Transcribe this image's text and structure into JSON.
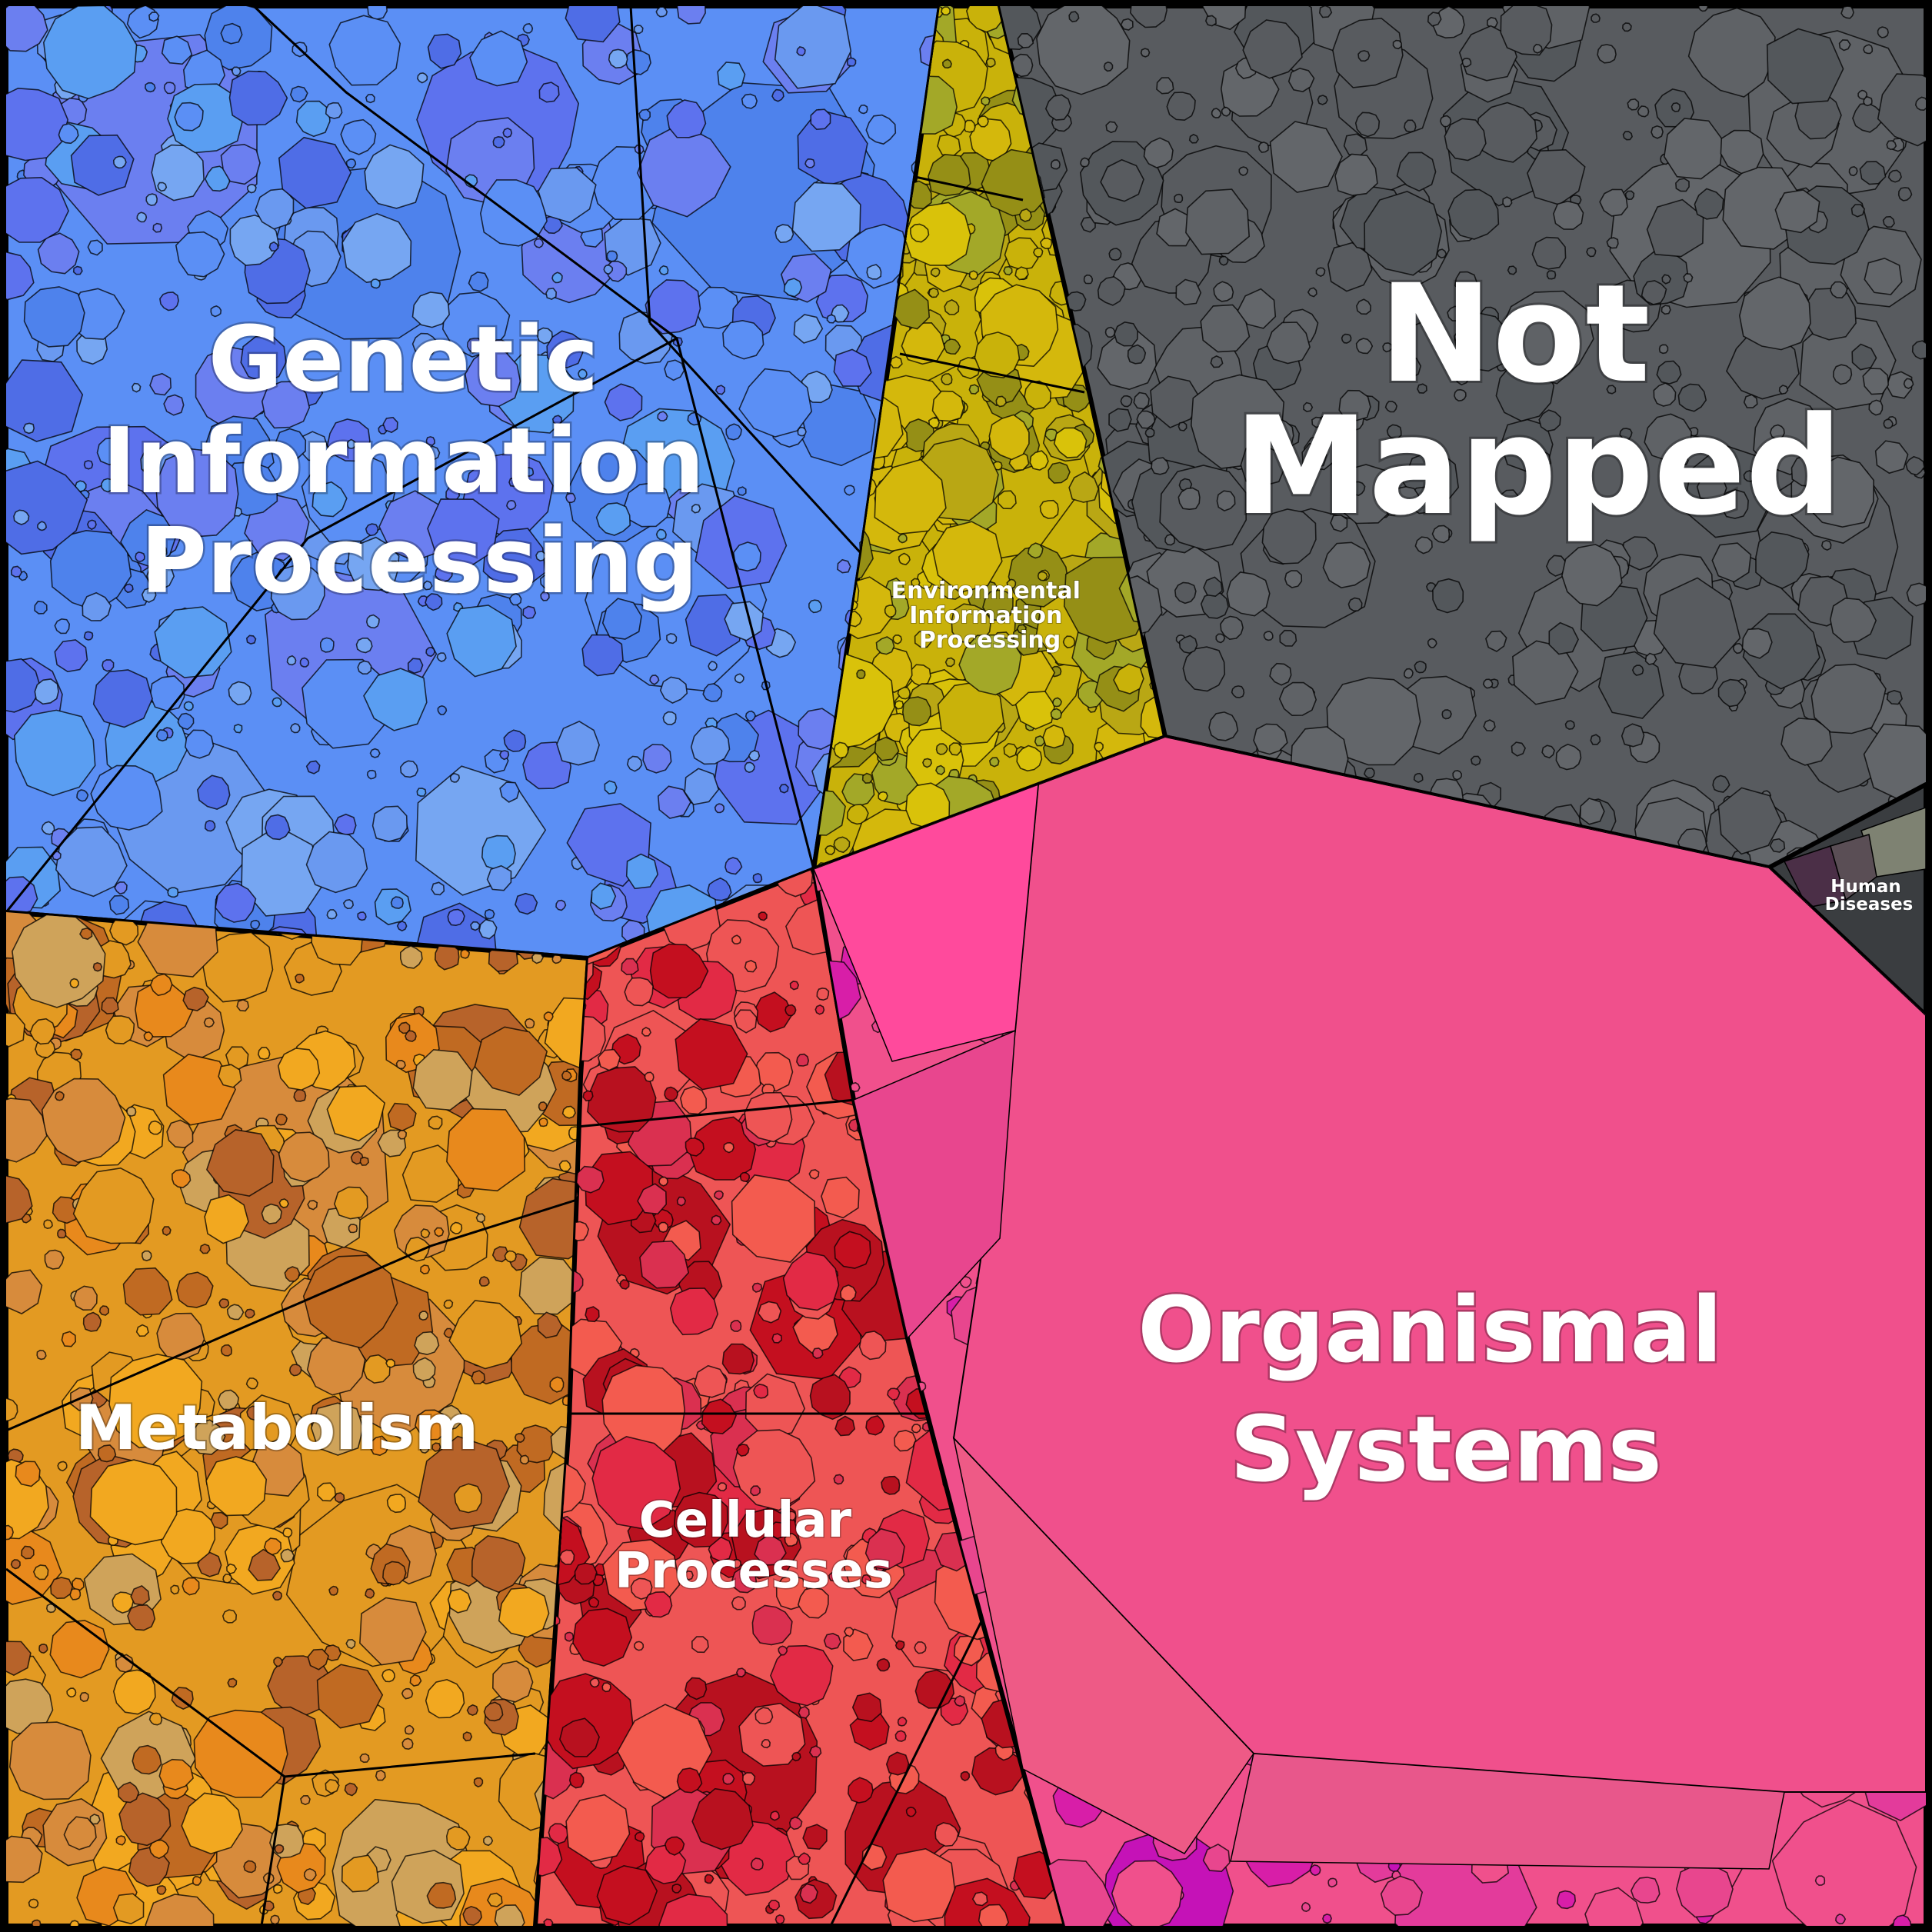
{
  "diagram": {
    "type": "voronoi-treemap",
    "categories": [
      {
        "id": "genetic",
        "label_lines": [
          "Genetic",
          "Information",
          "Processing"
        ],
        "colors": [
          "#5b8ff5",
          "#6a99f0",
          "#4e82ec",
          "#76a6f2",
          "#5d72ee",
          "#6b7ff0",
          "#5a9ef2",
          "#4f6de6"
        ]
      },
      {
        "id": "not-mapped",
        "label_lines": [
          "Not",
          "Mapped"
        ],
        "colors": [
          "#585b5f",
          "#5f6266",
          "#53575b",
          "#63666a"
        ]
      },
      {
        "id": "environmental",
        "label_lines": [
          "Environmental",
          "Information",
          "Processing"
        ],
        "colors": [
          "#c9b20a",
          "#d4b80c",
          "#b9a714",
          "#a3a828",
          "#958f16",
          "#d9c20a"
        ]
      },
      {
        "id": "metabolism",
        "label_lines": [
          "Metabolism"
        ],
        "colors": [
          "#e39a22",
          "#f2a820",
          "#c06a22",
          "#b7632a",
          "#d78b3c",
          "#cfa35a",
          "#e8891c"
        ]
      },
      {
        "id": "cellular",
        "label_lines": [
          "Cellular",
          "Processes"
        ],
        "colors": [
          "#ee5555",
          "#b8111f",
          "#da3050",
          "#e22a45",
          "#f35b4f",
          "#c40f1f"
        ]
      },
      {
        "id": "organismal",
        "label_lines": [
          "Organismal",
          "Systems"
        ],
        "colors": [
          "#f0508c",
          "#e8468e",
          "#f24f96",
          "#d81ea8",
          "#c512b7",
          "#e33b9b"
        ]
      },
      {
        "id": "human-diseases",
        "label_lines": [
          "Human",
          "Diseases"
        ],
        "colors": [
          "#3a3d40",
          "#4b2f47",
          "#7e8272",
          "#5a4e55"
        ]
      }
    ]
  }
}
